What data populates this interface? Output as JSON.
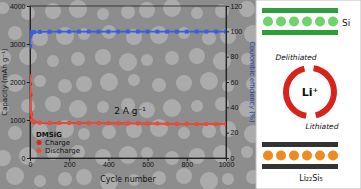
{
  "chart_data": {
    "type": "line",
    "x_label": "Cycle number",
    "y_label": "Capacity (mAh g⁻¹)",
    "y2_label": "Coulombic efficiency (%)",
    "annotations": [
      "DMSiG",
      "2 A g⁻¹"
    ],
    "x": [
      1,
      2,
      5,
      10,
      20,
      50,
      100,
      150,
      200,
      250,
      300,
      350,
      400,
      450,
      500,
      550,
      600,
      650,
      700,
      750,
      800,
      850,
      900,
      950,
      1000
    ],
    "series": [
      {
        "name": "Charge",
        "color": "#d62718",
        "marker": "circle",
        "axis": "y",
        "values": [
          1950,
          1650,
          1150,
          990,
          950,
          930,
          925,
          920,
          920,
          918,
          915,
          915,
          912,
          910,
          910,
          908,
          905,
          905,
          903,
          900,
          900,
          898,
          895,
          895,
          893
        ]
      },
      {
        "name": "Discharge",
        "color": "#f04a3a",
        "marker": "circle",
        "axis": "y",
        "values": [
          2150,
          1720,
          1190,
          1000,
          958,
          935,
          928,
          923,
          922,
          920,
          917,
          916,
          914,
          912,
          911,
          909,
          907,
          906,
          904,
          902,
          901,
          899,
          897,
          896,
          894
        ]
      },
      {
        "color": "#3b5ee0",
        "marker": "square",
        "axis": "y2",
        "values": [
          88,
          96,
          98,
          99,
          99.4,
          99.6,
          99.7,
          99.8,
          99.8,
          99.8,
          99.8,
          99.8,
          99.8,
          99.8,
          99.8,
          99.8,
          99.8,
          99.8,
          99.8,
          99.8,
          99.8,
          99.8,
          99.8,
          99.8,
          99.8
        ]
      }
    ],
    "xlim": [
      0,
      1000
    ],
    "xticks": [
      0,
      200,
      400,
      600,
      800,
      1000
    ],
    "ylim": [
      0,
      4000
    ],
    "yticks": [
      0,
      1000,
      2000,
      3000,
      4000
    ],
    "y2lim": [
      0,
      120
    ],
    "y2ticks": [
      0,
      20,
      40,
      60,
      80,
      100,
      120
    ],
    "legend": "lower left",
    "grid": false
  },
  "diagram": {
    "top_label": "Si",
    "bottom_label": "Li₂₂Si₅",
    "center_label": "Li⁺",
    "upper_label": "Delithiated",
    "lower_label": "Lithiated"
  }
}
